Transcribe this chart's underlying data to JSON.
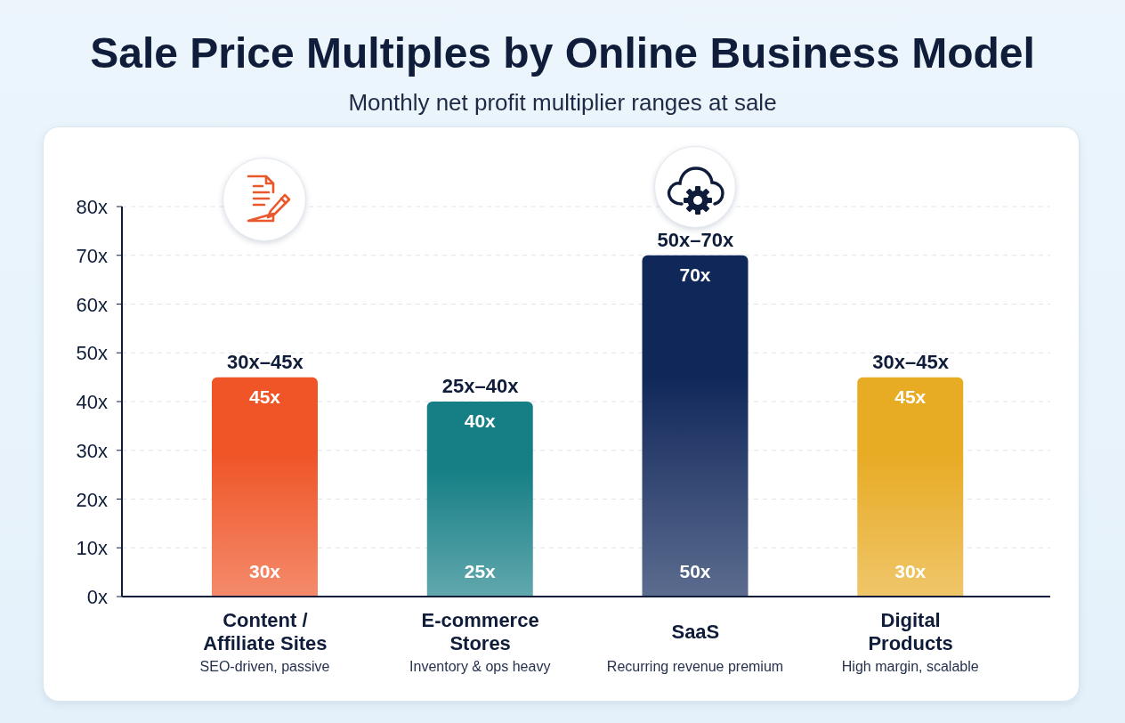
{
  "chart_data": {
    "type": "bar",
    "title": "Sale Price Multiples by Online Business Model",
    "subtitle": "Monthly net profit multiplier ranges at sale",
    "categories": [
      "Content / Affiliate Sites",
      "E-commerce Stores",
      "SaaS",
      "Digital Products"
    ],
    "values": [
      45,
      40,
      70,
      45
    ],
    "colors": [
      "#ef5527",
      "#167f86",
      "#10275a",
      "#e8ab24"
    ],
    "value_labels": [
      "45x",
      "40x",
      "70x",
      "45x"
    ],
    "ylim": [
      0,
      80
    ],
    "yticks": [
      {
        "value": 0,
        "label": "0x"
      },
      {
        "value": 10,
        "label": "10x"
      },
      {
        "value": 20,
        "label": "20x"
      },
      {
        "value": 30,
        "label": "30x"
      },
      {
        "value": 40,
        "label": "40x"
      },
      {
        "value": 50,
        "label": "50x"
      },
      {
        "value": 60,
        "label": "60x"
      },
      {
        "value": 70,
        "label": "70x"
      },
      {
        "value": 80,
        "label": "80x"
      }
    ],
    "grid": "y",
    "annotations": [
      {
        "text": "30x–45x",
        "x": "Content / Affiliate Sites",
        "y": 45
      },
      {
        "text": "25x–40x",
        "x": "E-commerce Stores",
        "y": 40
      },
      {
        "text": "50x–70x",
        "x": "SaaS",
        "y": 70
      },
      {
        "text": "30x–45x",
        "x": "Digital Products",
        "y": 45
      },
      "30x",
      "25x",
      "50x",
      "30x",
      "SEO-driven, passive",
      "Inventory & ops heavy",
      "Recurring revenue premium",
      "High margin, scalable"
    ]
  }
}
